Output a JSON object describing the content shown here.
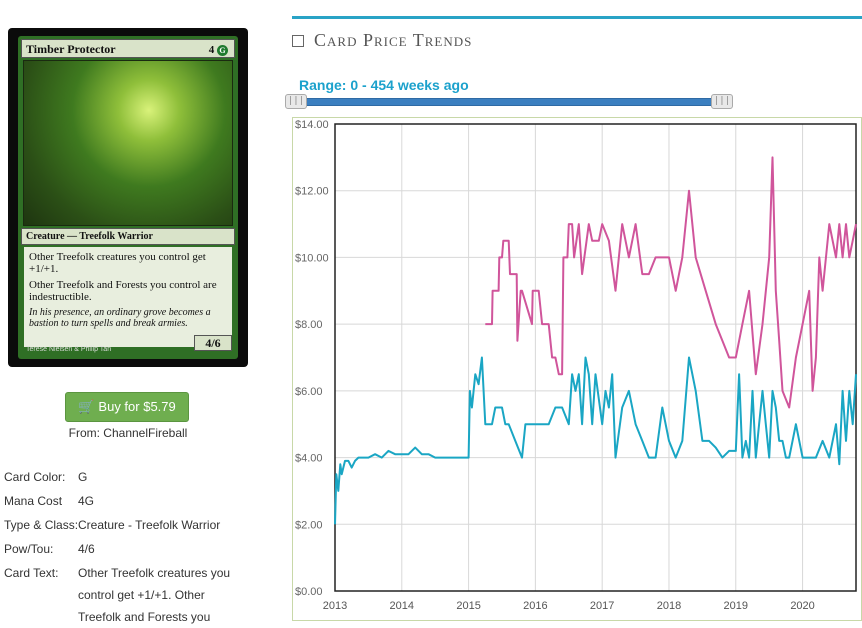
{
  "card": {
    "name": "Timber Protector",
    "cost_number": "4",
    "cost_symbol": "G",
    "type_line": "Creature — Treefolk Warrior",
    "rules_1": "Other Treefolk creatures you control get +1/+1.",
    "rules_2": "Other Treefolk and Forests you control are indestructible.",
    "flavor": "In his presence, an ordinary grove becomes a bastion to turn spells and break armies.",
    "pt": "4/6",
    "artist": "Terese Nielsen & Philip Tan"
  },
  "buy": {
    "label": "Buy for $5.79",
    "from": "From: ChannelFireball"
  },
  "properties": [
    {
      "label": "Card Color:",
      "value": "G"
    },
    {
      "label": "Mana Cost",
      "value": "4G"
    },
    {
      "label": "Type & Class:",
      "value": "Creature - Treefolk Warrior"
    },
    {
      "label": "Pow/Tou:",
      "value": "4/6"
    },
    {
      "label": "Card Text:",
      "value": "Other Treefolk creatures you control get +1/+1. Other Treefolk and Forests you"
    }
  ],
  "section": {
    "title": "Card Price Trends"
  },
  "range": {
    "label": "Range: 0 - 454 weeks ago",
    "handle_glyph": "|||"
  },
  "chart_data": {
    "type": "line",
    "ylim": [
      0,
      14
    ],
    "xlim": [
      2013.0,
      2020.8
    ],
    "yticks": [
      "$0.00",
      "$2.00",
      "$4.00",
      "$6.00",
      "$8.00",
      "$10.00",
      "$12.00",
      "$14.00"
    ],
    "ytick_values": [
      0,
      2,
      4,
      6,
      8,
      10,
      12,
      14
    ],
    "xticks": [
      "2013",
      "2014",
      "2015",
      "2016",
      "2017",
      "2018",
      "2019",
      "2020"
    ],
    "xtick_values": [
      2013,
      2014,
      2015,
      2016,
      2017,
      2018,
      2019,
      2020
    ],
    "grid": true,
    "colors": {
      "foil": "#d0559b",
      "normal": "#1aa6c4"
    },
    "series": [
      {
        "key": "foil",
        "x": [
          2015.25,
          2015.35,
          2015.36,
          2015.45,
          2015.46,
          2015.5,
          2015.52,
          2015.6,
          2015.62,
          2015.72,
          2015.73,
          2015.78,
          2015.8,
          2015.95,
          2015.96,
          2016.05,
          2016.1,
          2016.2,
          2016.25,
          2016.3,
          2016.35,
          2016.4,
          2016.42,
          2016.48,
          2016.5,
          2016.55,
          2016.58,
          2016.65,
          2016.7,
          2016.8,
          2016.85,
          2016.95,
          2017.0,
          2017.1,
          2017.2,
          2017.3,
          2017.4,
          2017.5,
          2017.6,
          2017.7,
          2017.8,
          2018.0,
          2018.1,
          2018.2,
          2018.3,
          2018.4,
          2018.55,
          2018.7,
          2018.8,
          2018.9,
          2019.0,
          2019.05,
          2019.1,
          2019.2,
          2019.3,
          2019.4,
          2019.5,
          2019.55,
          2019.6,
          2019.65,
          2019.7,
          2019.8,
          2019.9,
          2020.0,
          2020.1,
          2020.15,
          2020.2,
          2020.25,
          2020.3,
          2020.4,
          2020.5,
          2020.55,
          2020.6,
          2020.65,
          2020.7,
          2020.75,
          2020.8
        ],
        "y": [
          8.0,
          8.0,
          9.0,
          9.0,
          10.0,
          10.0,
          10.5,
          10.5,
          9.5,
          9.5,
          7.5,
          9.0,
          9.0,
          8.0,
          9.0,
          9.0,
          8.0,
          8.0,
          7.0,
          7.0,
          6.5,
          6.5,
          10.0,
          10.0,
          11.0,
          11.0,
          10.0,
          11.0,
          9.5,
          11.0,
          10.5,
          10.5,
          11.0,
          10.5,
          9.0,
          11.0,
          10.0,
          11.0,
          9.5,
          9.5,
          10.0,
          10.0,
          9.0,
          10.0,
          12.0,
          10.0,
          9.0,
          8.0,
          7.5,
          7.0,
          7.0,
          7.5,
          8.0,
          9.0,
          6.5,
          8.0,
          10.0,
          13.0,
          9.0,
          7.5,
          6.0,
          5.5,
          7.0,
          8.0,
          9.0,
          6.0,
          7.0,
          10.0,
          9.0,
          11.0,
          10.0,
          11.0,
          10.0,
          11.0,
          10.0,
          10.5,
          11.0
        ]
      },
      {
        "key": "normal",
        "x": [
          2013.0,
          2013.02,
          2013.05,
          2013.08,
          2013.1,
          2013.15,
          2013.2,
          2013.25,
          2013.3,
          2013.35,
          2013.4,
          2013.5,
          2013.6,
          2013.7,
          2013.8,
          2013.9,
          2014.0,
          2014.1,
          2014.2,
          2014.3,
          2014.4,
          2014.5,
          2014.6,
          2014.7,
          2014.8,
          2014.9,
          2015.0,
          2015.02,
          2015.05,
          2015.1,
          2015.15,
          2015.2,
          2015.25,
          2015.35,
          2015.4,
          2015.45,
          2015.5,
          2015.55,
          2015.6,
          2015.7,
          2015.8,
          2015.85,
          2015.9,
          2016.0,
          2016.1,
          2016.2,
          2016.3,
          2016.4,
          2016.5,
          2016.55,
          2016.6,
          2016.65,
          2016.7,
          2016.75,
          2016.8,
          2016.85,
          2016.9,
          2017.0,
          2017.05,
          2017.1,
          2017.15,
          2017.2,
          2017.3,
          2017.4,
          2017.5,
          2017.6,
          2017.7,
          2017.8,
          2017.9,
          2018.0,
          2018.1,
          2018.2,
          2018.3,
          2018.4,
          2018.5,
          2018.6,
          2018.7,
          2018.8,
          2018.9,
          2019.0,
          2019.05,
          2019.1,
          2019.15,
          2019.2,
          2019.25,
          2019.3,
          2019.35,
          2019.4,
          2019.45,
          2019.5,
          2019.55,
          2019.6,
          2019.65,
          2019.7,
          2019.75,
          2019.8,
          2019.9,
          2020.0,
          2020.1,
          2020.2,
          2020.3,
          2020.4,
          2020.5,
          2020.55,
          2020.6,
          2020.65,
          2020.7,
          2020.75,
          2020.8
        ],
        "y": [
          2.0,
          3.5,
          3.0,
          3.8,
          3.5,
          3.9,
          3.9,
          3.7,
          3.9,
          4.0,
          4.0,
          4.0,
          4.1,
          4.0,
          4.2,
          4.1,
          4.1,
          4.1,
          4.3,
          4.1,
          4.1,
          4.0,
          4.0,
          4.0,
          4.0,
          4.0,
          4.0,
          6.0,
          5.5,
          6.5,
          6.2,
          7.0,
          5.0,
          5.0,
          5.5,
          5.5,
          5.5,
          5.0,
          5.0,
          4.5,
          4.0,
          5.0,
          5.0,
          5.0,
          5.0,
          5.0,
          5.5,
          5.5,
          5.0,
          6.5,
          6.0,
          6.5,
          5.0,
          7.0,
          6.5,
          5.0,
          6.5,
          5.0,
          6.0,
          5.5,
          6.5,
          4.0,
          5.5,
          6.0,
          5.0,
          4.5,
          4.0,
          4.0,
          5.5,
          4.5,
          4.0,
          4.5,
          7.0,
          6.0,
          4.5,
          4.5,
          4.3,
          4.0,
          4.2,
          4.2,
          6.5,
          4.0,
          4.5,
          4.0,
          6.0,
          4.0,
          5.0,
          6.0,
          5.0,
          4.0,
          6.0,
          5.5,
          4.5,
          4.5,
          4.0,
          4.0,
          5.0,
          4.0,
          4.0,
          4.0,
          4.5,
          4.0,
          5.0,
          3.8,
          6.0,
          4.5,
          6.0,
          5.0,
          6.5
        ]
      }
    ]
  }
}
